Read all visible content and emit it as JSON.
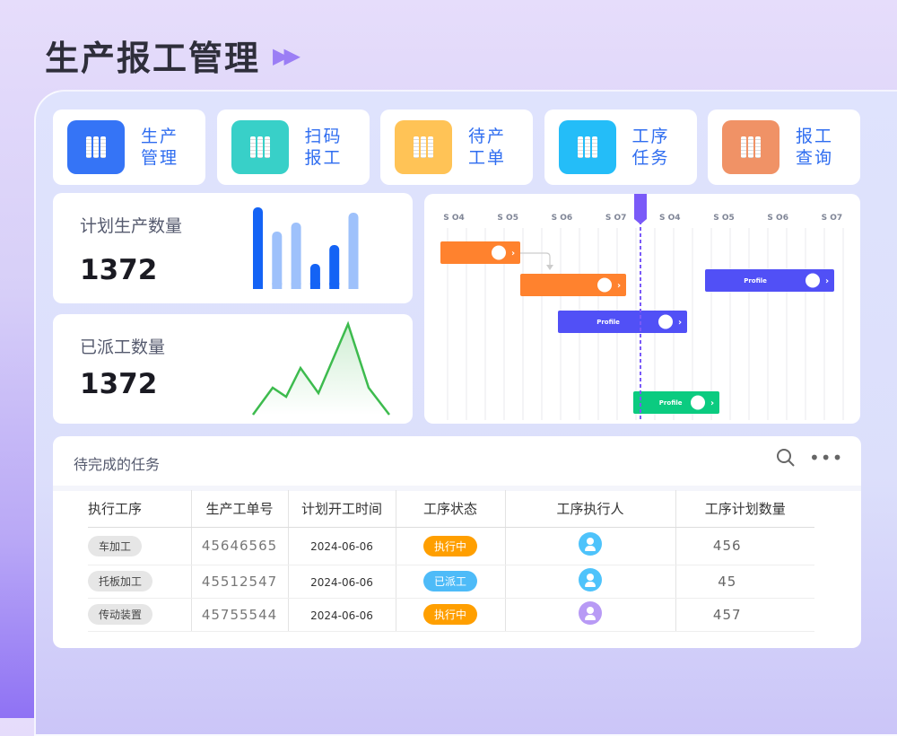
{
  "page_title": "生产报工管理",
  "nav": [
    {
      "label": "生产管理",
      "color": "#3574f6"
    },
    {
      "label": "扫码报工",
      "color": "#38d0c8"
    },
    {
      "label": "待产工单",
      "color": "#ffc356"
    },
    {
      "label": "工序任务",
      "color": "#24bdf8"
    },
    {
      "label": "报工查询",
      "color": "#f09266"
    }
  ],
  "stats": [
    {
      "title": "计划生产数量",
      "value": "1372",
      "chart": {
        "type": "bar",
        "values": [
          91,
          64,
          74,
          28,
          49,
          85
        ],
        "colors": [
          "#1463f5",
          "#9ec1fb",
          "#9ec1fb",
          "#1463f5",
          "#1463f5",
          "#9ec1fb"
        ]
      }
    },
    {
      "title": "已派工数量",
      "value": "1372",
      "chart": {
        "type": "line",
        "values": [
          0,
          30,
          20,
          52,
          24,
          101,
          30,
          0
        ],
        "color": "#3dbb4e"
      }
    }
  ],
  "gantt": {
    "columns": [
      "S O4",
      "S O5",
      "S O6",
      "S O7",
      "S O4",
      "S O5",
      "S O6",
      "S O7"
    ],
    "bars": [
      {
        "label": "",
        "color": "#ff822e"
      },
      {
        "label": "",
        "color": "#ff822e"
      },
      {
        "label": "Profile",
        "color": "#5150f6"
      },
      {
        "label": "Profile",
        "color": "#5150f6"
      },
      {
        "label": "Profile",
        "color": "#0bcb80"
      }
    ],
    "marker_color": "#7a5af8"
  },
  "tasks": {
    "title": "待完成的任务",
    "columns": [
      "执行工序",
      "生产工单号",
      "计划开工时间",
      "工序状态",
      "工序执行人",
      "工序计划数量"
    ],
    "rows": [
      {
        "process": "车加工",
        "order": "45646565",
        "date": "2024-06-06",
        "status": "执行中",
        "status_color": "#ff9f00",
        "avatar_color": "#4ec3fb",
        "qty": "456"
      },
      {
        "process": "托板加工",
        "order": "45512547",
        "date": "2024-06-06",
        "status": "已派工",
        "status_color": "#4ebbf8",
        "avatar_color": "#4ec3fb",
        "qty": "45"
      },
      {
        "process": "传动装置",
        "order": "45755544",
        "date": "2024-06-06",
        "status": "执行中",
        "status_color": "#ff9f00",
        "avatar_color": "#b89af5",
        "qty": "457"
      }
    ]
  }
}
